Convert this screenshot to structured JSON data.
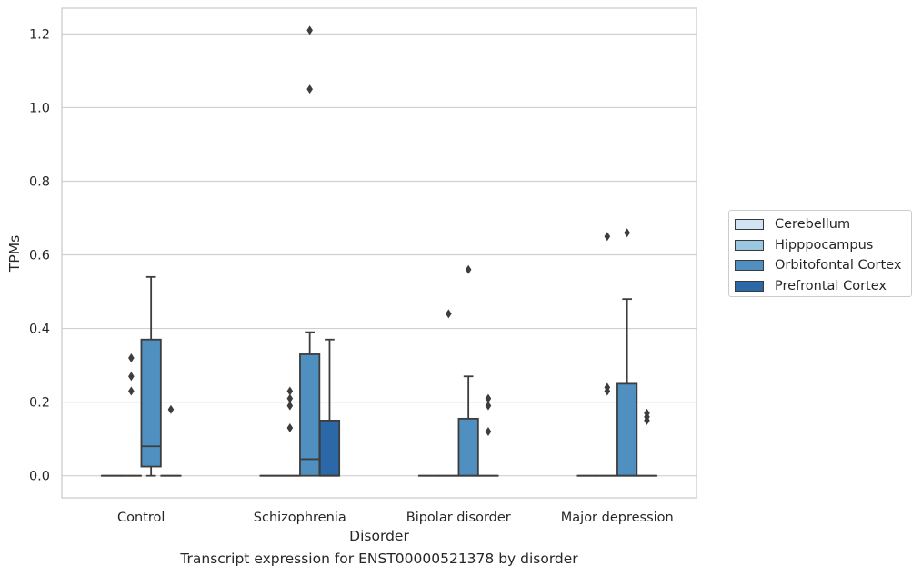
{
  "chart_data": {
    "type": "box",
    "caption": "Transcript expression for ENST00000521378 by disorder",
    "xlabel": "Disorder",
    "ylabel": "TPMs",
    "ylim": [
      -0.06,
      1.27
    ],
    "yticks": [
      0.0,
      0.2,
      0.4,
      0.6,
      0.8,
      1.0,
      1.2
    ],
    "ytick_labels": [
      "0.0",
      "0.2",
      "0.4",
      "0.6",
      "0.8",
      "1.0",
      "1.2"
    ],
    "categories": [
      "Control",
      "Schizophrenia",
      "Bipolar disorder",
      "Major depression"
    ],
    "grid": "horizontal",
    "legend_position": "right",
    "series": [
      {
        "name": "Cerebellum",
        "color": "#d2e3f3",
        "boxes": [
          {
            "q1": 0,
            "median": 0,
            "q3": 0,
            "whislo": 0,
            "whishi": 0,
            "fliers": []
          },
          {
            "q1": 0,
            "median": 0,
            "q3": 0,
            "whislo": 0,
            "whishi": 0,
            "fliers": []
          },
          {
            "q1": 0,
            "median": 0,
            "q3": 0,
            "whislo": 0,
            "whishi": 0,
            "fliers": []
          },
          {
            "q1": 0,
            "median": 0,
            "q3": 0,
            "whislo": 0,
            "whishi": 0,
            "fliers": []
          }
        ]
      },
      {
        "name": "Hipppocampus",
        "color": "#9ac8e0",
        "boxes": [
          {
            "q1": 0,
            "median": 0,
            "q3": 0,
            "whislo": 0,
            "whishi": 0,
            "fliers": [
              0.23,
              0.27,
              0.32
            ]
          },
          {
            "q1": 0,
            "median": 0,
            "q3": 0,
            "whislo": 0,
            "whishi": 0,
            "fliers": [
              0.13,
              0.19,
              0.23,
              0.21
            ]
          },
          {
            "q1": 0,
            "median": 0,
            "q3": 0,
            "whislo": 0,
            "whishi": 0,
            "fliers": [
              0.44
            ]
          },
          {
            "q1": 0,
            "median": 0,
            "q3": 0,
            "whislo": 0,
            "whishi": 0,
            "fliers": [
              0.24,
              0.23,
              0.65
            ]
          }
        ]
      },
      {
        "name": "Orbitofontal Cortex",
        "color": "#4f90c1",
        "boxes": [
          {
            "q1": 0.025,
            "median": 0.08,
            "q3": 0.37,
            "whislo": 0,
            "whishi": 0.54,
            "fliers": []
          },
          {
            "q1": 0,
            "median": 0.045,
            "q3": 0.33,
            "whislo": 0,
            "whishi": 0.39,
            "fliers": [
              1.05,
              1.21
            ]
          },
          {
            "q1": 0,
            "median": 0,
            "q3": 0.155,
            "whislo": 0,
            "whishi": 0.27,
            "fliers": [
              0.56
            ]
          },
          {
            "q1": 0,
            "median": 0,
            "q3": 0.25,
            "whislo": 0,
            "whishi": 0.48,
            "fliers": [
              0.66
            ]
          }
        ]
      },
      {
        "name": "Prefrontal Cortex",
        "color": "#2a68a8",
        "boxes": [
          {
            "q1": 0,
            "median": 0,
            "q3": 0,
            "whislo": 0,
            "whishi": 0,
            "fliers": [
              0.18
            ]
          },
          {
            "q1": 0,
            "median": 0,
            "q3": 0.15,
            "whislo": 0,
            "whishi": 0.37,
            "fliers": []
          },
          {
            "q1": 0,
            "median": 0,
            "q3": 0,
            "whislo": 0,
            "whishi": 0,
            "fliers": [
              0.12,
              0.19,
              0.21
            ]
          },
          {
            "q1": 0,
            "median": 0,
            "q3": 0,
            "whislo": 0,
            "whishi": 0,
            "fliers": [
              0.15,
              0.16,
              0.17
            ]
          }
        ]
      }
    ]
  }
}
